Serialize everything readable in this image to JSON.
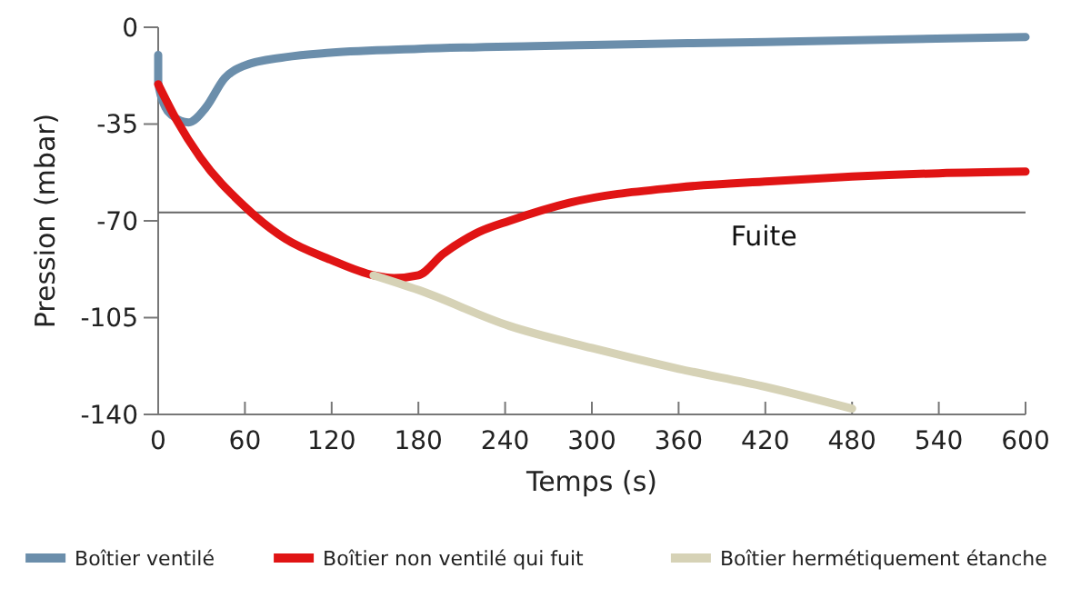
{
  "chart_data": {
    "type": "line",
    "xlabel": "Temps (s)",
    "ylabel": "Pression (mbar)",
    "xlim": [
      0,
      600
    ],
    "xticks": [
      0,
      60,
      120,
      180,
      240,
      300,
      360,
      420,
      480,
      540,
      600
    ],
    "ylim": [
      -140,
      0
    ],
    "yticks": [
      -140,
      -105,
      -70,
      -35,
      0
    ],
    "grid": false,
    "legend": "bottom",
    "marker": "none",
    "line_style": "solid",
    "ref_lines": [
      {
        "axis": "y",
        "value": -67,
        "label": "Fuite",
        "color": "#666666"
      }
    ],
    "series": [
      {
        "name": "Boîtier ventilé",
        "color": "#6b8eab",
        "x": [
          0,
          0,
          5,
          10,
          21,
          33,
          46,
          59,
          88,
          119,
          180,
          260,
          300,
          420,
          600
        ],
        "values": [
          -10,
          -20,
          -29,
          -32,
          -34.4,
          -29,
          -18.4,
          -14,
          -10.8,
          -9.2,
          -7.8,
          -6.8,
          -6.4,
          -5.3,
          -3.5
        ]
      },
      {
        "name": "Boîtier non ventilé qui fuit",
        "color": "#e01414",
        "x": [
          0,
          13,
          29,
          59,
          88,
          119,
          149,
          163,
          180,
          197,
          222,
          243,
          285,
          360,
          423,
          480,
          540,
          600
        ],
        "values": [
          -20.6,
          -33.8,
          -47,
          -64.4,
          -76.5,
          -84,
          -89.7,
          -90.7,
          -89.7,
          -82,
          -74,
          -70,
          -63.4,
          -57.9,
          -55.7,
          -54,
          -52.8,
          -52.2
        ]
      },
      {
        "name": "Boîtier hermétiquement étanche",
        "color": "#d6d2b6",
        "x": [
          149,
          180,
          243,
          300,
          360,
          420,
          480
        ],
        "values": [
          -89.7,
          -95,
          -108,
          -116,
          -123.5,
          -130,
          -137.9
        ]
      }
    ]
  }
}
